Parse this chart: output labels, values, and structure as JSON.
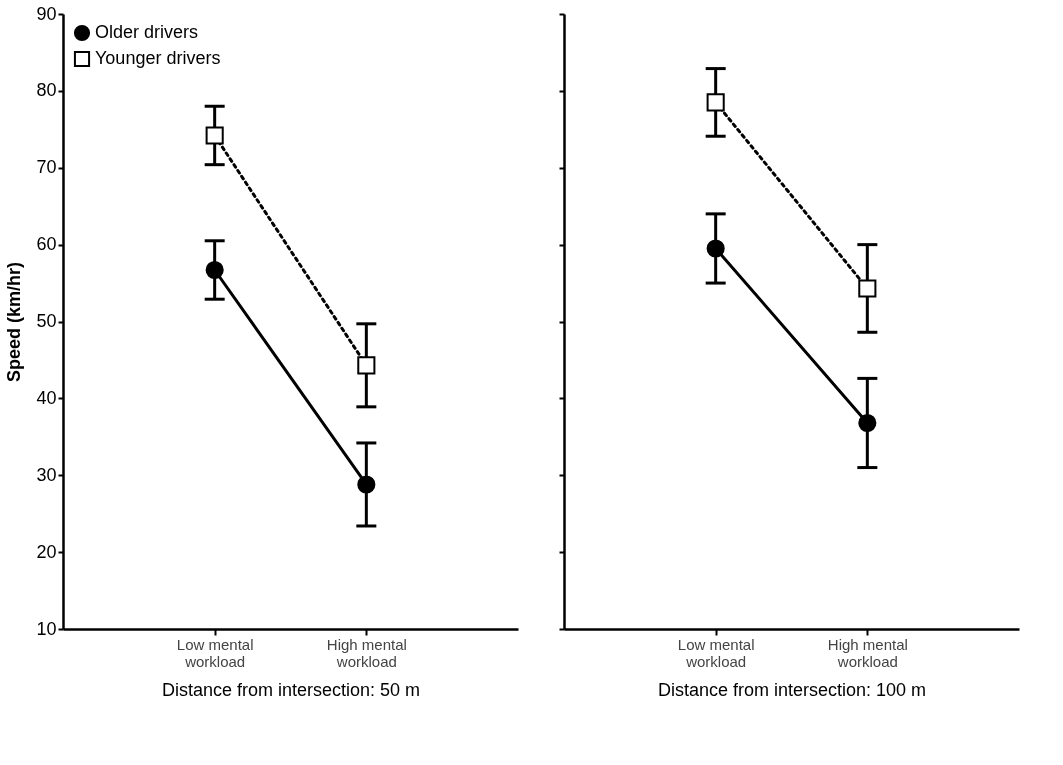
{
  "chart_data": [
    {
      "type": "line",
      "categories": [
        "Low mental\nworkload",
        "High mental\nworkload"
      ],
      "xlabel": "Distance from intersection: 50 m",
      "ylabel": "Speed (km/hr)",
      "ylim": [
        10,
        90
      ],
      "yticks": [
        10,
        20,
        30,
        40,
        50,
        60,
        70,
        80,
        90
      ],
      "legend": "top left",
      "grid": false,
      "series": [
        {
          "name": "Older drivers",
          "color": "#000000",
          "values": [
            56.7,
            28.8
          ],
          "errors": [
            3.8,
            5.4
          ],
          "marker": "circle",
          "line_style": "solid"
        },
        {
          "name": "Younger drivers",
          "color": "#000000",
          "values": [
            74.2,
            44.3
          ],
          "errors": [
            3.8,
            5.4
          ],
          "marker": "square",
          "line_style": "dotted"
        }
      ]
    },
    {
      "type": "line",
      "categories": [
        "Low mental\nworkload",
        "High mental\nworkload"
      ],
      "xlabel": "Distance from intersection: 100 m",
      "ylim": [
        10,
        90
      ],
      "yticks": [
        10,
        20,
        30,
        40,
        50,
        60,
        70,
        80,
        90
      ],
      "tick_labels": "x",
      "grid": false,
      "series": [
        {
          "color": "#000000",
          "values": [
            59.5,
            36.8
          ],
          "errors": [
            4.5,
            5.8
          ],
          "marker": "circle",
          "line_style": "solid"
        },
        {
          "color": "#000000",
          "values": [
            78.5,
            54.3
          ],
          "errors": [
            4.4,
            5.7
          ],
          "marker": "square",
          "line_style": "dotted"
        }
      ]
    }
  ]
}
